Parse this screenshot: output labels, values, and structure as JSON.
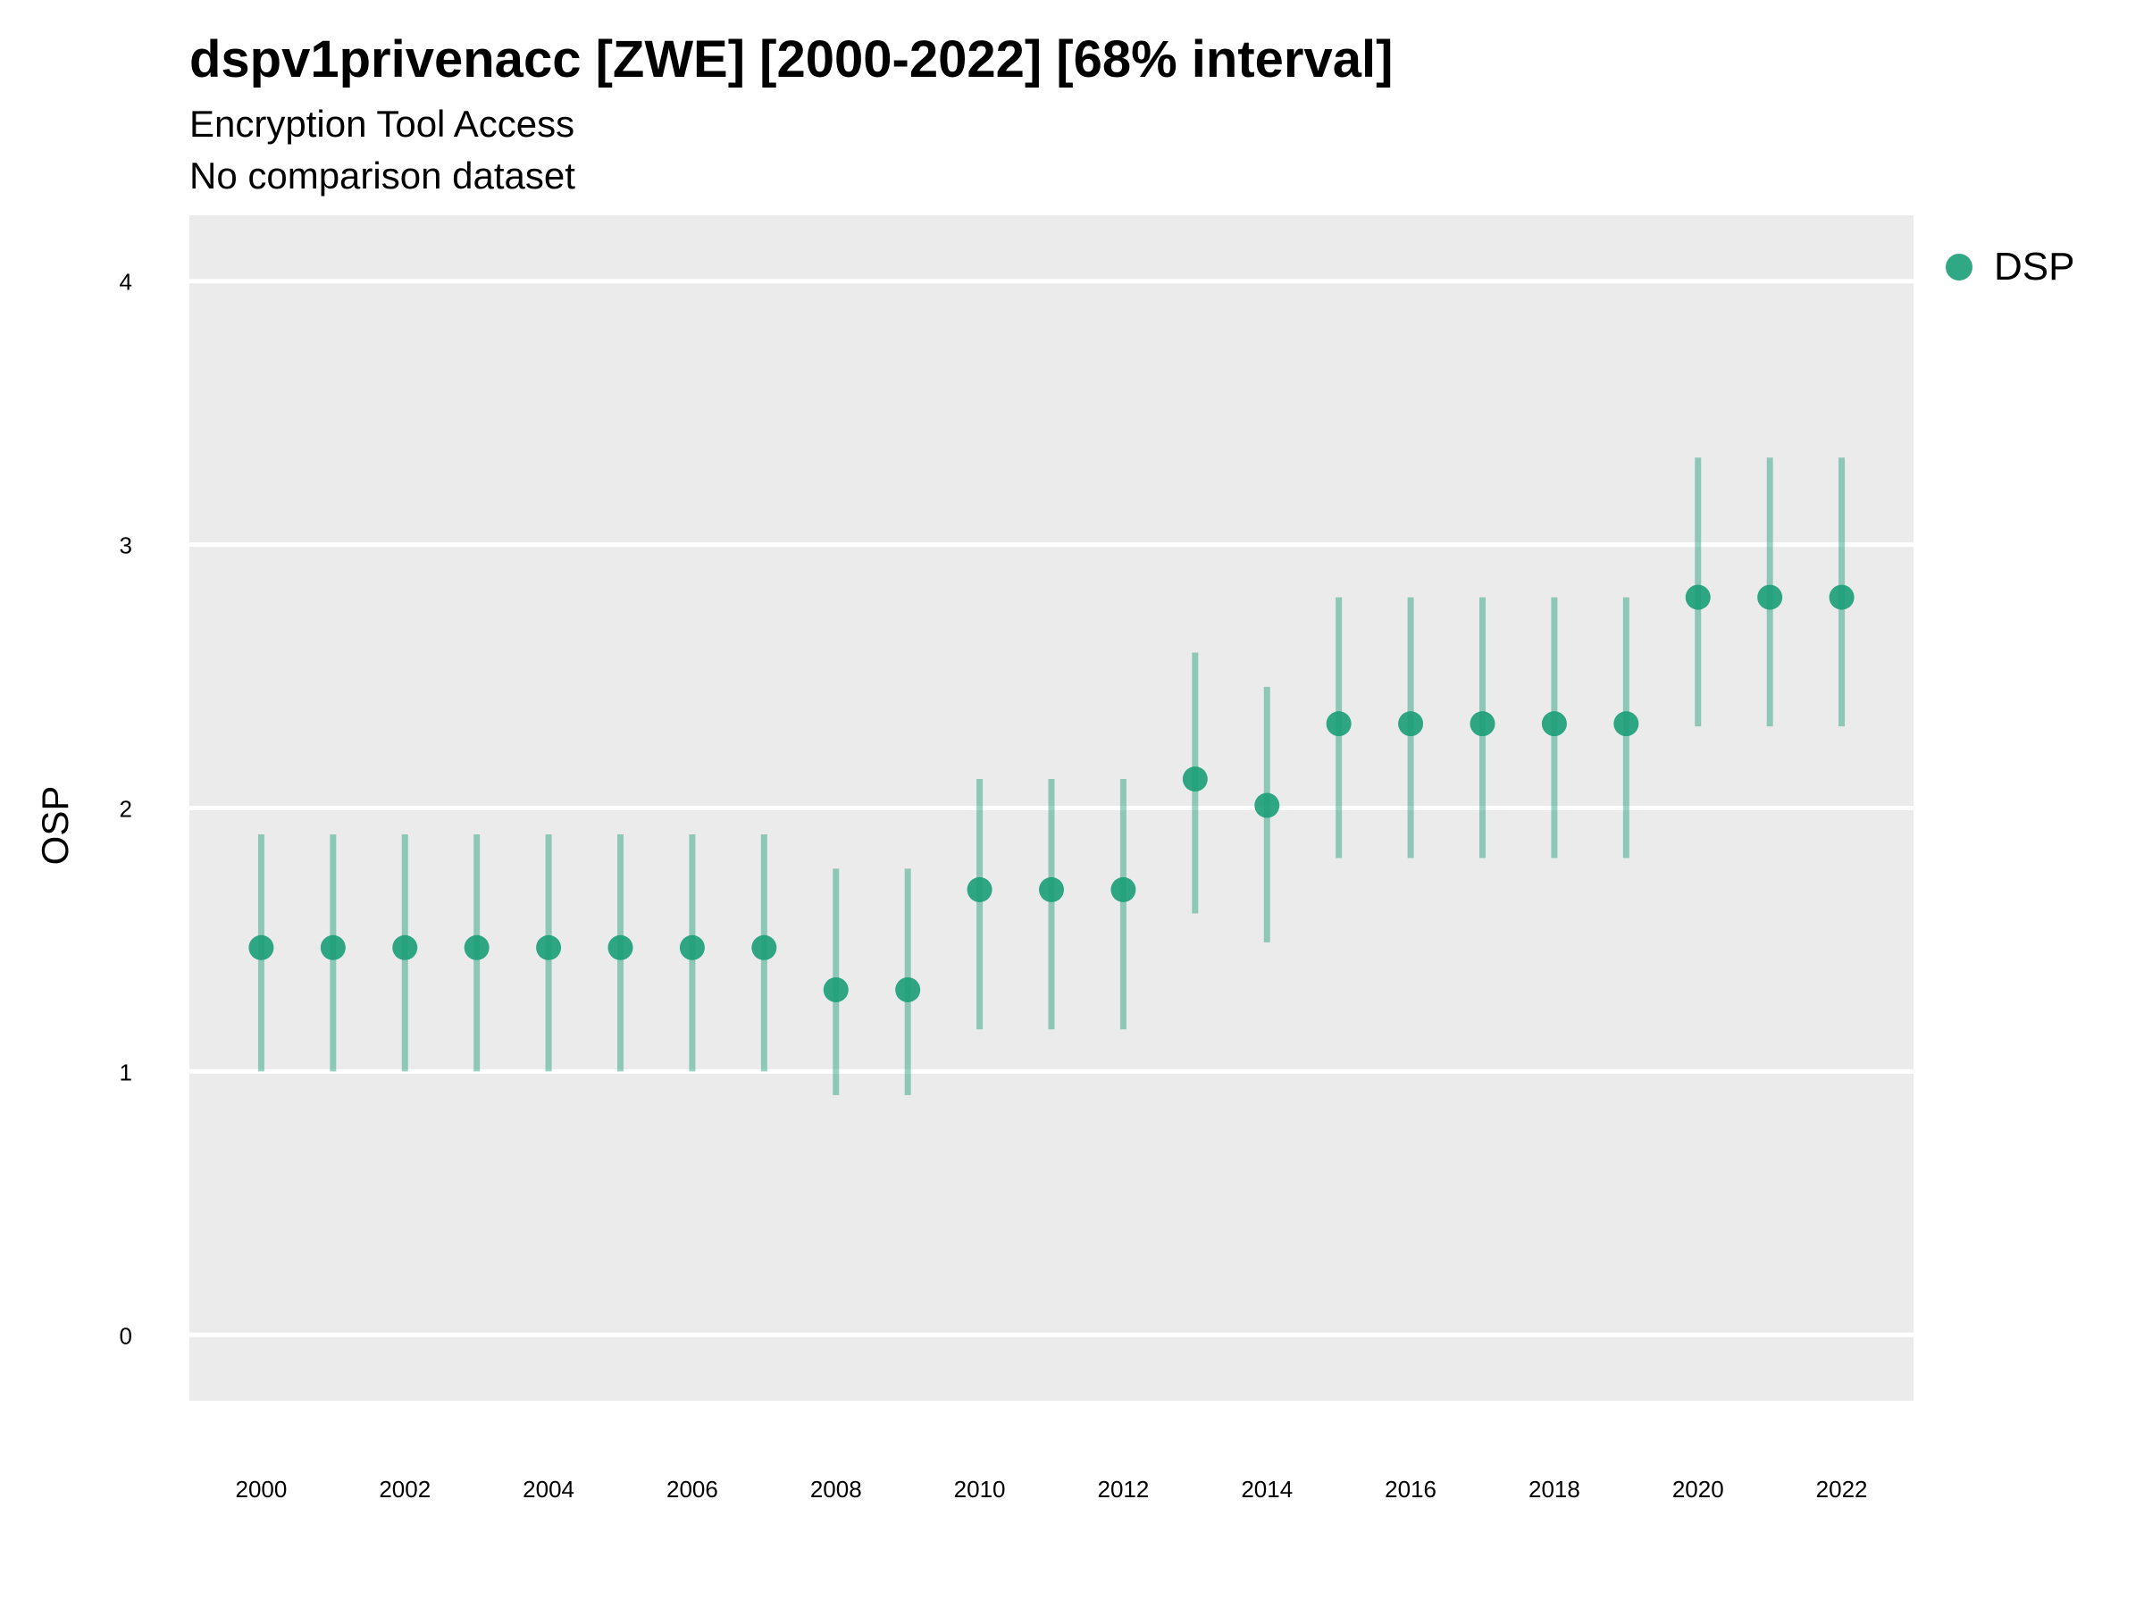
{
  "title": "dspv1privenacc [ZWE] [2000-2022] [68% interval]",
  "subtitle_1": "Encryption Tool Access",
  "subtitle_2": "No comparison dataset",
  "colors": {
    "panel": "#ebebeb",
    "grid": "#ffffff",
    "point": "#1b9e77",
    "interval": "#1b9e77"
  },
  "chart_data": {
    "type": "scatter",
    "ylabel": "OSP",
    "xlabel": "",
    "ylim": [
      -0.25,
      4.25
    ],
    "xlim": [
      1999,
      2023
    ],
    "yticks": [
      0,
      1,
      2,
      3,
      4
    ],
    "xticks": [
      2000,
      2002,
      2004,
      2006,
      2008,
      2010,
      2012,
      2014,
      2016,
      2018,
      2020,
      2022
    ],
    "grid": true,
    "legend_position": "right",
    "series": [
      {
        "name": "DSP",
        "x": [
          2000,
          2001,
          2002,
          2003,
          2004,
          2005,
          2006,
          2007,
          2008,
          2009,
          2010,
          2011,
          2012,
          2013,
          2014,
          2015,
          2016,
          2017,
          2018,
          2019,
          2020,
          2021,
          2022
        ],
        "y": [
          1.47,
          1.47,
          1.47,
          1.47,
          1.47,
          1.47,
          1.47,
          1.47,
          1.31,
          1.31,
          1.69,
          1.69,
          1.69,
          2.11,
          2.01,
          2.32,
          2.32,
          2.32,
          2.32,
          2.32,
          2.8,
          2.8,
          2.8
        ],
        "lower": [
          1.0,
          1.0,
          1.0,
          1.0,
          1.0,
          1.0,
          1.0,
          1.0,
          0.91,
          0.91,
          1.16,
          1.16,
          1.16,
          1.6,
          1.49,
          1.81,
          1.81,
          1.81,
          1.81,
          1.81,
          2.31,
          2.31,
          2.31
        ],
        "upper": [
          1.9,
          1.9,
          1.9,
          1.9,
          1.9,
          1.9,
          1.9,
          1.9,
          1.77,
          1.77,
          2.11,
          2.11,
          2.11,
          2.59,
          2.46,
          2.8,
          2.8,
          2.8,
          2.8,
          2.8,
          3.33,
          3.33,
          3.33
        ]
      }
    ]
  }
}
